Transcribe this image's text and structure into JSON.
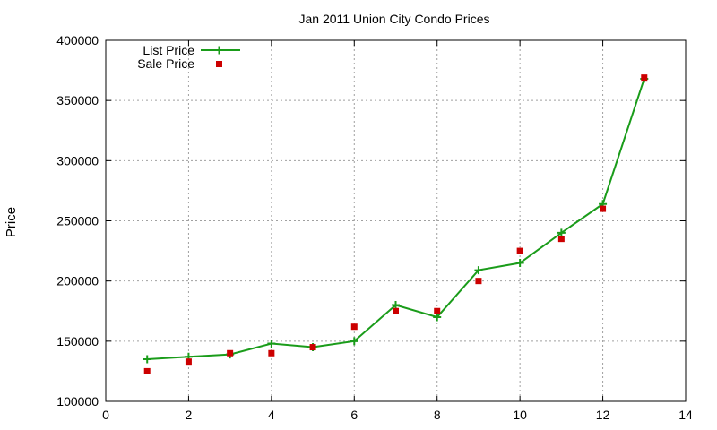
{
  "chart_data": {
    "type": "line",
    "title": "Jan 2011 Union City Condo Prices",
    "xlabel": "",
    "ylabel": "Price",
    "xlim": [
      0,
      14
    ],
    "ylim": [
      100000,
      400000
    ],
    "x_ticks": [
      0,
      2,
      4,
      6,
      8,
      10,
      12,
      14
    ],
    "y_ticks": [
      100000,
      150000,
      200000,
      250000,
      300000,
      350000,
      400000
    ],
    "grid": true,
    "legend_position": "top-left",
    "series": [
      {
        "name": "List Price",
        "style": "line+cross",
        "color": "#1a9c1a",
        "x": [
          1,
          2,
          3,
          4,
          5,
          6,
          7,
          8,
          9,
          10,
          11,
          12,
          13
        ],
        "y": [
          135000,
          137000,
          139000,
          148000,
          145000,
          150000,
          180000,
          170000,
          209000,
          215000,
          240000,
          264000,
          368000
        ]
      },
      {
        "name": "Sale Price",
        "style": "square",
        "color": "#cc0000",
        "x": [
          1,
          2,
          3,
          4,
          5,
          6,
          7,
          8,
          9,
          10,
          11,
          12,
          13
        ],
        "y": [
          125000,
          133000,
          140000,
          140000,
          145000,
          162000,
          175000,
          175000,
          200000,
          225000,
          235000,
          260000,
          369000
        ]
      }
    ]
  }
}
